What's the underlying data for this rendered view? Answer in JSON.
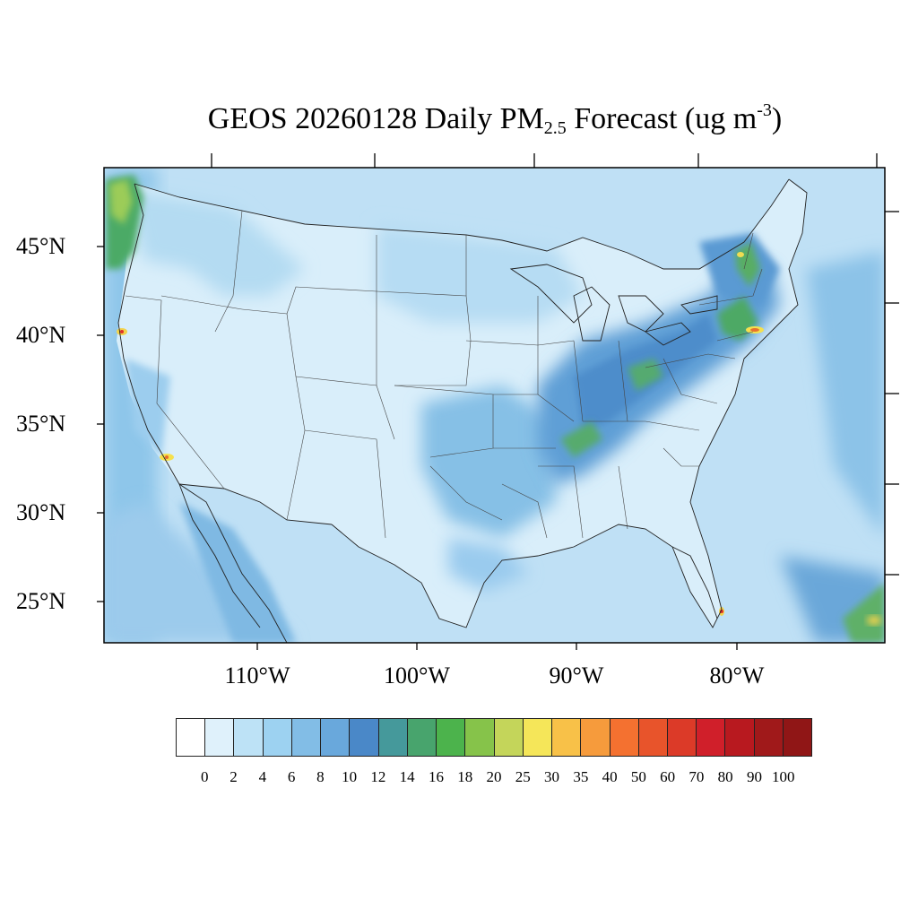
{
  "title": {
    "prefix": "GEOS 20260128 Daily PM",
    "sub": "2.5",
    "mid": " Forecast (ug m",
    "sup": "-3",
    "suffix": ")"
  },
  "map": {
    "region": "Contiguous United States",
    "variable": "Daily PM2.5 forecast",
    "units": "ug m-3",
    "lat_labels": [
      "45°N",
      "40°N",
      "35°N",
      "30°N",
      "25°N"
    ],
    "lon_labels": [
      "110°W",
      "100°W",
      "90°W",
      "80°W"
    ],
    "colors": {
      "ocean": "#c6e4f6",
      "land_low": "#dff1fb",
      "land_mid": "#b7dcf3",
      "land_high": "#8fc6ea",
      "plume": "#5d9fd6",
      "hot_green": "#4faa5e",
      "hot_yellow": "#f6e65a",
      "hot_red": "#e0322a"
    }
  },
  "colorbar": {
    "labels": [
      "0",
      "2",
      "4",
      "6",
      "8",
      "10",
      "12",
      "14",
      "16",
      "18",
      "20",
      "25",
      "30",
      "35",
      "40",
      "50",
      "60",
      "70",
      "80",
      "90",
      "100"
    ],
    "colors": [
      "#ffffff",
      "#dff1fb",
      "#bde2f6",
      "#9dd2f1",
      "#82bde6",
      "#69a8dc",
      "#4a88c8",
      "#45999b",
      "#48a46d",
      "#4cb34c",
      "#86c34a",
      "#c4d55a",
      "#f5e659",
      "#f8c148",
      "#f69b3c",
      "#f47130",
      "#e8542b",
      "#dc3a28",
      "#d01f2a",
      "#b8191f",
      "#a0191a",
      "#901616"
    ]
  }
}
